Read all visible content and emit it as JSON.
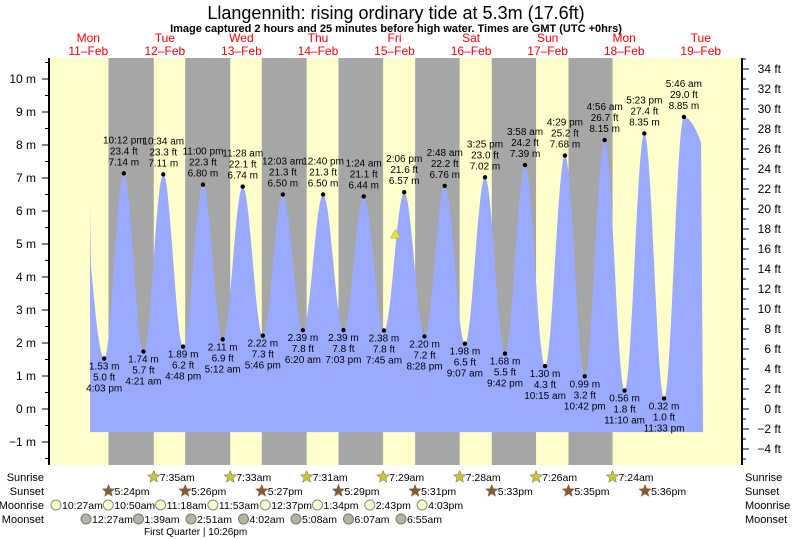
{
  "title": "Llangennith: rising  ordinary tide at 5.3m (17.6ft)",
  "subtitle": "Image captured 2 hours and 25 minutes before high water. Times are GMT (UTC +0hrs)",
  "colors": {
    "day": "#ffffcc",
    "night": "#a6a6a6",
    "water": "#9aabff",
    "day_label": "#ff0000",
    "sunrise": "#c8c832",
    "sunset": "#8b5a2b",
    "moonrise": "#ffffcc",
    "moonset": "#b4b4a0",
    "marker": "#e6e632"
  },
  "chart_data": {
    "type": "area",
    "title": "Llangennith: rising  ordinary tide at 5.3m (17.6ft)",
    "days": [
      {
        "dow": "Mon",
        "date": "11–Feb"
      },
      {
        "dow": "Tue",
        "date": "12–Feb"
      },
      {
        "dow": "Wed",
        "date": "13–Feb"
      },
      {
        "dow": "Thu",
        "date": "14–Feb"
      },
      {
        "dow": "Fri",
        "date": "15–Feb"
      },
      {
        "dow": "Sat",
        "date": "16–Feb"
      },
      {
        "dow": "Sun",
        "date": "17–Feb"
      },
      {
        "dow": "Mon",
        "date": "18–Feb"
      },
      {
        "dow": "Tue",
        "date": "19–Feb"
      }
    ],
    "y_left": {
      "unit": "m",
      "ticks": [
        "−1 m",
        "0 m",
        "1 m",
        "2 m",
        "3 m",
        "4 m",
        "5 m",
        "6 m",
        "7 m",
        "8 m",
        "9 m",
        "10 m"
      ],
      "values": [
        -1,
        0,
        1,
        2,
        3,
        4,
        5,
        6,
        7,
        8,
        9,
        10
      ]
    },
    "y_right": {
      "unit": "ft",
      "ticks": [
        "−4 ft",
        "−2 ft",
        "0 ft",
        "2 ft",
        "4 ft",
        "6 ft",
        "8 ft",
        "10 ft",
        "12 ft",
        "14 ft",
        "16 ft",
        "18 ft",
        "20 ft",
        "22 ft",
        "24 ft",
        "26 ft",
        "28 ft",
        "30 ft",
        "32 ft",
        "34 ft"
      ],
      "values": [
        -4,
        -2,
        0,
        2,
        4,
        6,
        8,
        10,
        12,
        14,
        16,
        18,
        20,
        22,
        24,
        26,
        28,
        30,
        32,
        34
      ]
    },
    "ylim_m": [
      -1.7,
      10.6
    ],
    "current": {
      "day": 4,
      "time": "11:41 am",
      "m": 5.3
    },
    "tides": [
      {
        "type": "low",
        "day": 0,
        "time": "4:03 pm",
        "m": "1.53",
        "ft": "5.0"
      },
      {
        "type": "high",
        "day": 0,
        "time": "10:12 pm",
        "m": "7.14",
        "ft": "23.4"
      },
      {
        "type": "low",
        "day": 1,
        "time": "4:21 am",
        "m": "1.74",
        "ft": "5.7"
      },
      {
        "type": "high",
        "day": 1,
        "time": "10:34 am",
        "m": "7.11",
        "ft": "23.3"
      },
      {
        "type": "low",
        "day": 1,
        "time": "4:48 pm",
        "m": "1.89",
        "ft": "6.2"
      },
      {
        "type": "high",
        "day": 1,
        "time": "11:00 pm",
        "m": "6.80",
        "ft": "22.3"
      },
      {
        "type": "low",
        "day": 2,
        "time": "5:12 am",
        "m": "2.11",
        "ft": "6.9"
      },
      {
        "type": "high",
        "day": 2,
        "time": "11:28 am",
        "m": "6.74",
        "ft": "22.1"
      },
      {
        "type": "low",
        "day": 2,
        "time": "5:46 pm",
        "m": "2.22",
        "ft": "7.3"
      },
      {
        "type": "high",
        "day": 3,
        "time": "12:03 am",
        "m": "6.50",
        "ft": "21.3"
      },
      {
        "type": "low",
        "day": 3,
        "time": "6:20 am",
        "m": "2.39",
        "ft": "7.8"
      },
      {
        "type": "high",
        "day": 3,
        "time": "12:40 pm",
        "m": "6.50",
        "ft": "21.3"
      },
      {
        "type": "low",
        "day": 3,
        "time": "7:03 pm",
        "m": "2.39",
        "ft": "7.8"
      },
      {
        "type": "high",
        "day": 4,
        "time": "1:24 am",
        "m": "6.44",
        "ft": "21.1"
      },
      {
        "type": "low",
        "day": 4,
        "time": "7:45 am",
        "m": "2.38",
        "ft": "7.8"
      },
      {
        "type": "high",
        "day": 4,
        "time": "2:06 pm",
        "m": "6.57",
        "ft": "21.6"
      },
      {
        "type": "low",
        "day": 4,
        "time": "8:28 pm",
        "m": "2.20",
        "ft": "7.2"
      },
      {
        "type": "high",
        "day": 5,
        "time": "2:48 am",
        "m": "6.76",
        "ft": "22.2"
      },
      {
        "type": "low",
        "day": 5,
        "time": "9:07 am",
        "m": "1.98",
        "ft": "6.5"
      },
      {
        "type": "high",
        "day": 5,
        "time": "3:25 pm",
        "m": "7.02",
        "ft": "23.0"
      },
      {
        "type": "low",
        "day": 5,
        "time": "9:42 pm",
        "m": "1.68",
        "ft": "5.5"
      },
      {
        "type": "high",
        "day": 6,
        "time": "3:58 am",
        "m": "7.39",
        "ft": "24.2"
      },
      {
        "type": "low",
        "day": 6,
        "time": "10:15 am",
        "m": "1.30",
        "ft": "4.3"
      },
      {
        "type": "high",
        "day": 6,
        "time": "4:29 pm",
        "m": "7.68",
        "ft": "25.2"
      },
      {
        "type": "low",
        "day": 6,
        "time": "10:42 pm",
        "m": "0.99",
        "ft": "3.2"
      },
      {
        "type": "high",
        "day": 7,
        "time": "4:56 am",
        "m": "8.15",
        "ft": "26.7"
      },
      {
        "type": "low",
        "day": 7,
        "time": "11:10 am",
        "m": "0.56",
        "ft": "1.8"
      },
      {
        "type": "high",
        "day": 7,
        "time": "5:23 pm",
        "m": "8.35",
        "ft": "27.4"
      },
      {
        "type": "low",
        "day": 7,
        "time": "11:33 pm",
        "m": "0.32",
        "ft": "1.0"
      },
      {
        "type": "high",
        "day": 8,
        "time": "5:46 am",
        "m": "8.85",
        "ft": "29.0"
      }
    ]
  },
  "rows": {
    "labels": {
      "sunrise": "Sunrise",
      "sunset": "Sunset",
      "moonrise": "Moonrise",
      "moonset": "Moonset"
    },
    "sunrise": [
      "7:35am",
      "7:33am",
      "7:31am",
      "7:29am",
      "7:28am",
      "7:26am",
      "7:24am"
    ],
    "sunset": [
      "5:24pm",
      "5:26pm",
      "5:27pm",
      "5:29pm",
      "5:31pm",
      "5:33pm",
      "5:35pm",
      "5:36pm"
    ],
    "moonrise": [
      "10:27am",
      "10:50am",
      "11:18am",
      "11:53am",
      "12:37pm",
      "1:34pm",
      "2:43pm",
      "4:03pm"
    ],
    "moonset": [
      "12:27am",
      "1:39am",
      "2:51am",
      "4:02am",
      "5:08am",
      "6:07am",
      "6:55am"
    ],
    "moon_phase": "First Quarter | 10:26pm"
  }
}
